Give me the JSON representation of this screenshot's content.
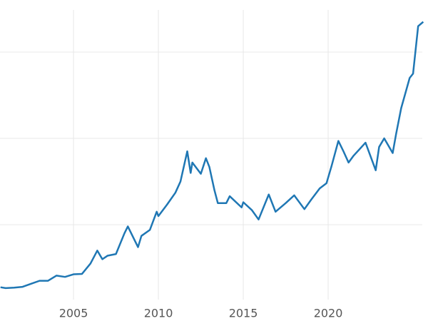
{
  "chart_data": {
    "type": "line",
    "x": [
      2000.7,
      2001,
      2001.5,
      2002,
      2002.5,
      2003,
      2003.5,
      2004,
      2004.5,
      2005,
      2005.5,
      2006,
      2006.4,
      2006.7,
      2007,
      2007.5,
      2008,
      2008.2,
      2008.8,
      2009,
      2009.5,
      2009.9,
      2010,
      2010.5,
      2011,
      2011.3,
      2011.7,
      2011.9,
      2012,
      2012.5,
      2012.8,
      2013,
      2013.3,
      2013.5,
      2014,
      2014.2,
      2014.9,
      2015,
      2015.5,
      2015.9,
      2016.5,
      2016.9,
      2017.5,
      2018,
      2018.6,
      2019,
      2019.5,
      2019.9,
      2020.2,
      2020.6,
      2020.9,
      2021.2,
      2021.5,
      2022.2,
      2022.8,
      2023,
      2023.3,
      2023.8,
      2024,
      2024.3,
      2024.8,
      2025,
      2025.3,
      2025.6
    ],
    "series": [
      {
        "color": "#1f77b4",
        "values": [
          275,
          265,
          270,
          280,
          315,
          350,
          350,
          410,
          395,
          425,
          430,
          550,
          700,
          600,
          640,
          660,
          900,
          980,
          740,
          870,
          940,
          1150,
          1100,
          1230,
          1370,
          1500,
          1850,
          1600,
          1720,
          1590,
          1770,
          1670,
          1400,
          1250,
          1250,
          1330,
          1200,
          1260,
          1170,
          1060,
          1350,
          1150,
          1250,
          1340,
          1180,
          1290,
          1420,
          1480,
          1680,
          1970,
          1850,
          1720,
          1800,
          1950,
          1630,
          1900,
          2000,
          1830,
          2050,
          2350,
          2700,
          2750,
          3300,
          3350
        ]
      }
    ],
    "xlim": [
      2000.67,
      2025.88
    ],
    "xticks": [
      2005,
      2010,
      2015,
      2020
    ],
    "ylim": [
      132,
      3603
    ],
    "yticks": [
      1000,
      2000,
      3000
    ],
    "grid": true
  }
}
